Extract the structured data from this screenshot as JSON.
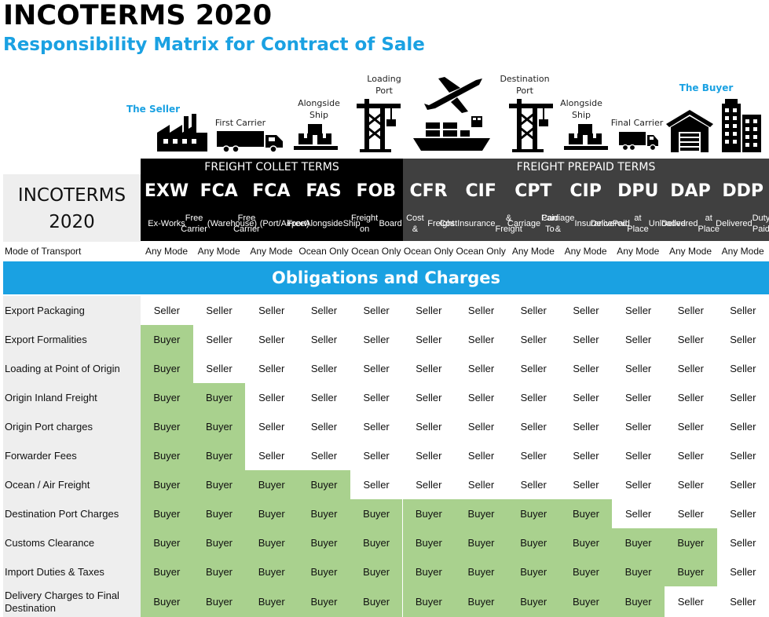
{
  "header": {
    "title": "INCOTERMS 2020",
    "subtitle": "Responsibility Matrix for Contract of Sale"
  },
  "icon_labels": {
    "seller": "The Seller",
    "first_carrier": "First Carrier",
    "alongside_ship_1": [
      "Alongside",
      "Ship"
    ],
    "loading_port": [
      "Loading",
      "Port"
    ],
    "destination_port": [
      "Destination",
      "Port"
    ],
    "alongside_ship_2": [
      "Alongside",
      "Ship"
    ],
    "final_carrier": "Final Carrier",
    "buyer": "The Buyer"
  },
  "icons": [
    "factory-icon",
    "truck-icon",
    "cargo-boxes-icon",
    "port-crane-icon",
    "airplane-icon",
    "container-ship-icon",
    "port-crane-icon",
    "cargo-boxes-icon",
    "truck-icon",
    "warehouse-icon",
    "city-buildings-icon"
  ],
  "left_box": [
    "INCOTERMS",
    "2020"
  ],
  "bands": {
    "collect": "FREIGHT COLLET TERMS",
    "prepaid": "FREIGHT  PREPAID TERMS"
  },
  "terms": [
    {
      "code": "EXW",
      "desc": [
        "Ex-Works"
      ],
      "mode": "Any Mode"
    },
    {
      "code": "FCA",
      "desc": [
        "Free Carrier",
        "(Warehouse)"
      ],
      "mode": "Any Mode"
    },
    {
      "code": "FCA",
      "desc": [
        "Free Carrier",
        "(Port/Airport)"
      ],
      "mode": "Any Mode"
    },
    {
      "code": "FAS",
      "desc": [
        "Free",
        "Alongside",
        "Ship"
      ],
      "mode": "Ocean Only"
    },
    {
      "code": "FOB",
      "desc": [
        "Freight on",
        "Board"
      ],
      "mode": "Ocean Only"
    },
    {
      "code": "CFR",
      "desc": [
        "Cost &",
        "Freight"
      ],
      "mode": "Ocean Only"
    },
    {
      "code": "CIF",
      "desc": [
        "Cost",
        "Insurance",
        "& Freight"
      ],
      "mode": "Ocean Only"
    },
    {
      "code": "CPT",
      "desc": [
        "Carriage",
        "Paid To"
      ],
      "mode": "Any Mode"
    },
    {
      "code": "CIP",
      "desc": [
        "Carriage &",
        "Insurance",
        "Paid"
      ],
      "mode": "Any Mode"
    },
    {
      "code": "DPU",
      "desc": [
        "Delivered",
        "at Place",
        "Unloaded"
      ],
      "mode": "Any Mode"
    },
    {
      "code": "DAP",
      "desc": [
        "Delivered",
        "at Place"
      ],
      "mode": "Any Mode"
    },
    {
      "code": "DDP",
      "desc": [
        "Delivered",
        "Duty Paid"
      ],
      "mode": "Any Mode"
    }
  ],
  "mode_label": "Mode of Transport",
  "obligations_title": "Obligations and Charges",
  "colors": {
    "accent": "#1aa1e2",
    "buyer_cell": "#a9d18e",
    "collect_band": "#000000",
    "prepaid_band": "#404040",
    "label_bg": "#eeeeee"
  },
  "rows": [
    {
      "label": "Export Packaging",
      "cells": [
        "Seller",
        "Seller",
        "Seller",
        "Seller",
        "Seller",
        "Seller",
        "Seller",
        "Seller",
        "Seller",
        "Seller",
        "Seller",
        "Seller"
      ]
    },
    {
      "label": "Export Formalities",
      "cells": [
        "Buyer",
        "Seller",
        "Seller",
        "Seller",
        "Seller",
        "Seller",
        "Seller",
        "Seller",
        "Seller",
        "Seller",
        "Seller",
        "Seller"
      ]
    },
    {
      "label": "Loading at Point of Origin",
      "cells": [
        "Buyer",
        "Seller",
        "Seller",
        "Seller",
        "Seller",
        "Seller",
        "Seller",
        "Seller",
        "Seller",
        "Seller",
        "Seller",
        "Seller"
      ]
    },
    {
      "label": "Origin Inland Freight",
      "cells": [
        "Buyer",
        "Buyer",
        "Seller",
        "Seller",
        "Seller",
        "Seller",
        "Seller",
        "Seller",
        "Seller",
        "Seller",
        "Seller",
        "Seller"
      ]
    },
    {
      "label": "Origin Port charges",
      "cells": [
        "Buyer",
        "Buyer",
        "Seller",
        "Seller",
        "Seller",
        "Seller",
        "Seller",
        "Seller",
        "Seller",
        "Seller",
        "Seller",
        "Seller"
      ]
    },
    {
      "label": "Forwarder Fees",
      "cells": [
        "Buyer",
        "Buyer",
        "Seller",
        "Seller",
        "Seller",
        "Seller",
        "Seller",
        "Seller",
        "Seller",
        "Seller",
        "Seller",
        "Seller"
      ]
    },
    {
      "label": "Ocean / Air Freight",
      "cells": [
        "Buyer",
        "Buyer",
        "Buyer",
        "Buyer",
        "Seller",
        "Seller",
        "Seller",
        "Seller",
        "Seller",
        "Seller",
        "Seller",
        "Seller"
      ]
    },
    {
      "label": "Destination Port Charges",
      "cells": [
        "Buyer",
        "Buyer",
        "Buyer",
        "Buyer",
        "Buyer",
        "Buyer",
        "Buyer",
        "Buyer",
        "Buyer",
        "Seller",
        "Seller",
        "Seller"
      ]
    },
    {
      "label": "Customs Clearance",
      "cells": [
        "Buyer",
        "Buyer",
        "Buyer",
        "Buyer",
        "Buyer",
        "Buyer",
        "Buyer",
        "Buyer",
        "Buyer",
        "Buyer",
        "Buyer",
        "Seller"
      ]
    },
    {
      "label": "Import Duties & Taxes",
      "cells": [
        "Buyer",
        "Buyer",
        "Buyer",
        "Buyer",
        "Buyer",
        "Buyer",
        "Buyer",
        "Buyer",
        "Buyer",
        "Buyer",
        "Buyer",
        "Seller"
      ]
    },
    {
      "label": [
        "Delivery Charges to Final",
        "Destination"
      ],
      "cells": [
        "Buyer",
        "Buyer",
        "Buyer",
        "Buyer",
        "Buyer",
        "Buyer",
        "Buyer",
        "Buyer",
        "Buyer",
        "Buyer",
        "Seller",
        "Seller"
      ]
    }
  ]
}
